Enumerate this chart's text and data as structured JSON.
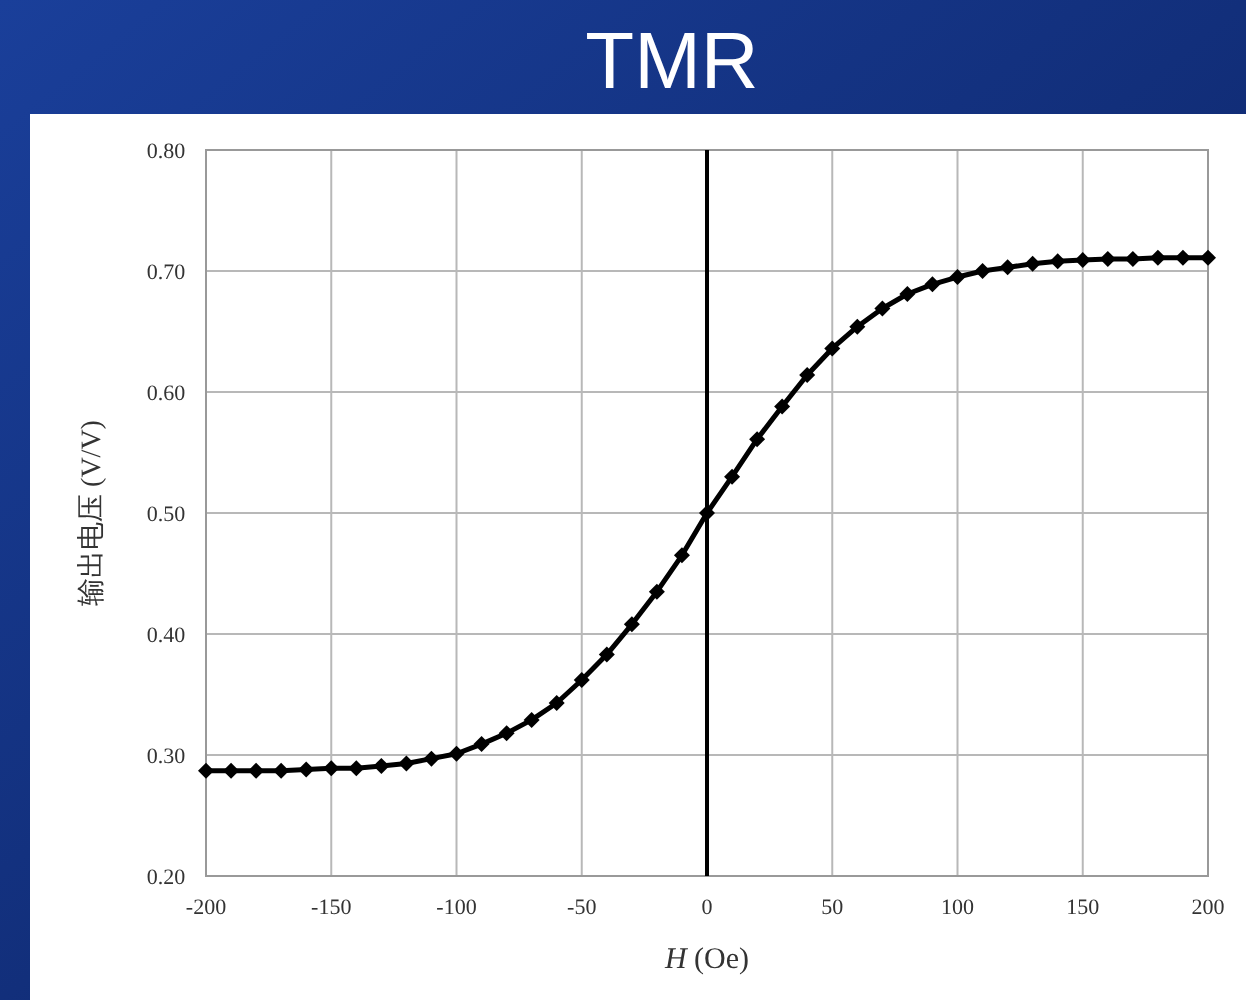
{
  "chart_data": {
    "type": "line",
    "title": "TMR",
    "xlabel": "H (Oe)",
    "ylabel": "输出电压 (V/V)",
    "x": [
      -200,
      -190,
      -180,
      -170,
      -160,
      -150,
      -140,
      -130,
      -120,
      -110,
      -100,
      -90,
      -80,
      -70,
      -60,
      -50,
      -40,
      -30,
      -20,
      -10,
      0,
      10,
      20,
      30,
      40,
      50,
      60,
      70,
      80,
      90,
      100,
      110,
      120,
      130,
      140,
      150,
      160,
      170,
      180,
      190,
      200
    ],
    "series": [
      {
        "color": "#000000",
        "values": [
          0.287,
          0.287,
          0.287,
          0.287,
          0.288,
          0.289,
          0.289,
          0.291,
          0.293,
          0.297,
          0.301,
          0.309,
          0.318,
          0.329,
          0.343,
          0.362,
          0.383,
          0.408,
          0.435,
          0.465,
          0.5,
          0.53,
          0.561,
          0.588,
          0.614,
          0.636,
          0.654,
          0.669,
          0.681,
          0.689,
          0.695,
          0.7,
          0.703,
          0.706,
          0.708,
          0.709,
          0.71,
          0.71,
          0.711,
          0.711,
          0.711
        ]
      }
    ],
    "xlim": [
      -200,
      200
    ],
    "xticks": [
      -200,
      -150,
      -100,
      -50,
      0,
      50,
      100,
      150,
      200
    ],
    "ylim": [
      0.2,
      0.8
    ],
    "yticks": [
      {
        "value": 0.2,
        "label": "0.20"
      },
      {
        "value": 0.3,
        "label": "0.30"
      },
      {
        "value": 0.4,
        "label": "0.40"
      },
      {
        "value": 0.5,
        "label": "0.50"
      },
      {
        "value": 0.6,
        "label": "0.60"
      },
      {
        "value": 0.7,
        "label": "0.70"
      },
      {
        "value": 0.8,
        "label": "0.80"
      }
    ],
    "ref_lines": [
      {
        "axis": "x",
        "value": 0,
        "color": "#000000"
      }
    ],
    "grid": true,
    "marker": "diamond",
    "line_style": "solid"
  }
}
